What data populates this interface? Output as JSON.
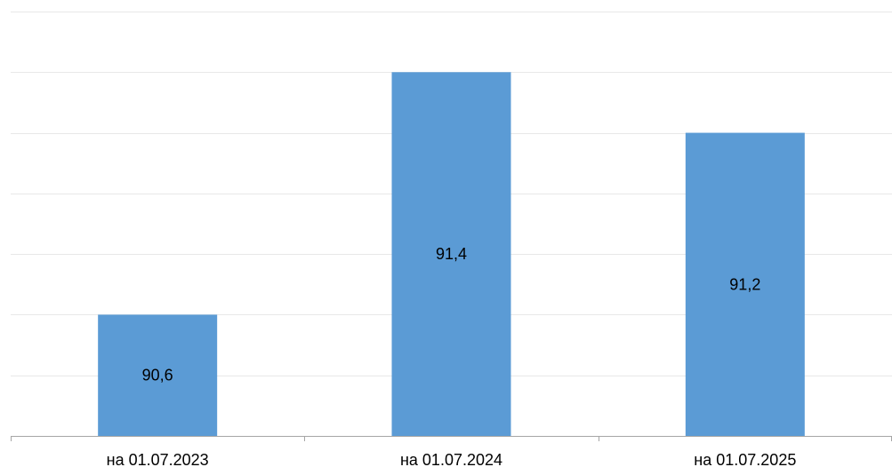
{
  "chart_data": {
    "type": "bar",
    "categories": [
      "на 01.07.2023",
      "на 01.07.2024",
      "на 01.07.2025"
    ],
    "values": [
      90.6,
      91.4,
      91.2
    ],
    "value_labels": [
      "90,6",
      "91,4",
      "91,2"
    ],
    "title": "",
    "xlabel": "",
    "ylabel": "",
    "ylim": [
      90.2,
      91.6
    ],
    "y_grid_step": 0.2,
    "grid": true,
    "legend": "none",
    "bar_color": "#5b9bd5",
    "grid_color": "#e8e8e8",
    "axis_color": "#a6a6a6"
  }
}
